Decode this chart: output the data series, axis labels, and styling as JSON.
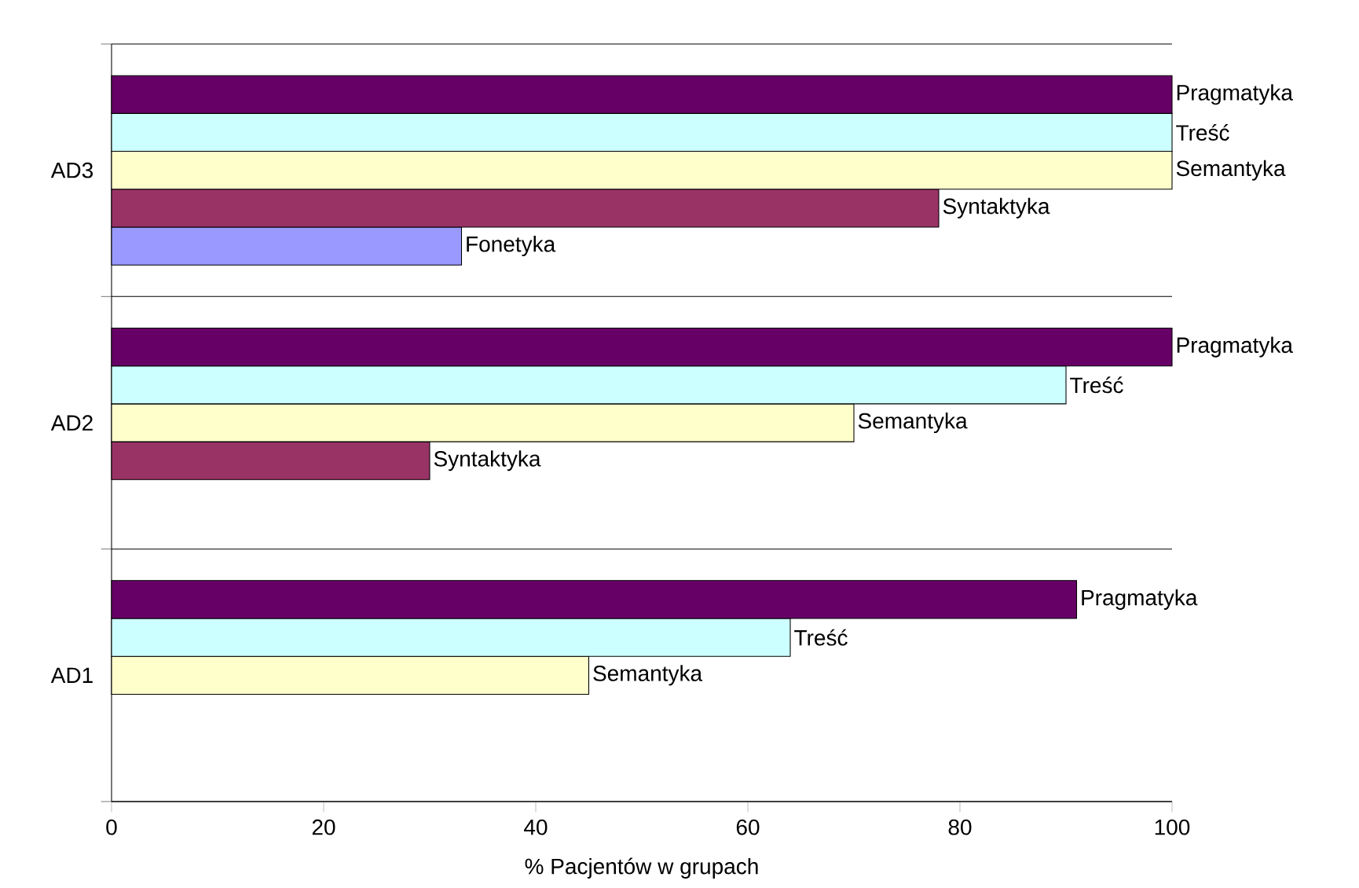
{
  "chart_data": {
    "type": "bar",
    "orientation": "horizontal",
    "xlabel": "% Pacjentów w grupach",
    "categories": [
      "AD3",
      "AD2",
      "AD1"
    ],
    "series": [
      {
        "name": "Fonetyka",
        "color": "#9999ff",
        "values": [
          33,
          null,
          null
        ]
      },
      {
        "name": "Syntaktyka",
        "color": "#993366",
        "values": [
          78,
          30,
          null
        ]
      },
      {
        "name": "Semantyka",
        "color": "#ffffcc",
        "values": [
          100,
          70,
          45
        ]
      },
      {
        "name": "Treść",
        "color": "#ccffff",
        "values": [
          100,
          90,
          64
        ]
      },
      {
        "name": "Pragmatyka",
        "color": "#660066",
        "values": [
          100,
          100,
          91
        ]
      }
    ],
    "xlim": [
      0,
      100
    ],
    "xticks": [
      0,
      20,
      40,
      60,
      80,
      100
    ],
    "grid": "y"
  }
}
